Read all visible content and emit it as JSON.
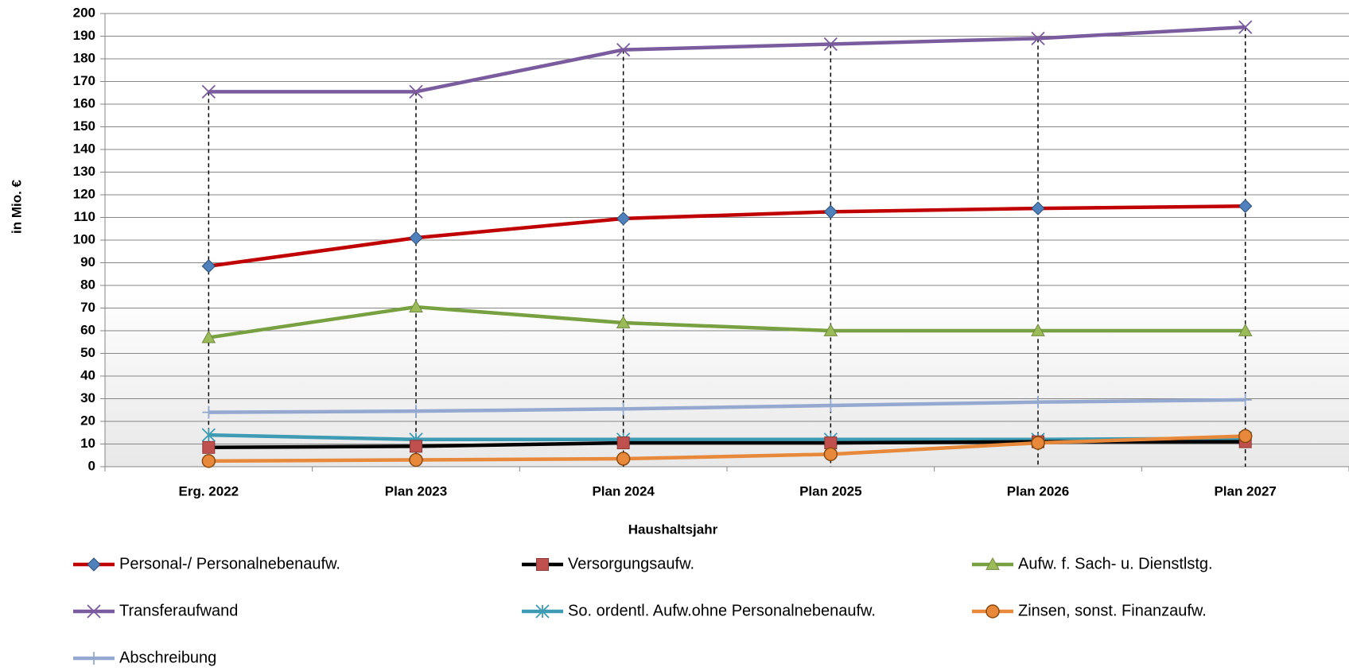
{
  "chart_data": {
    "type": "line",
    "x_label": "Haushaltsjahr",
    "y_label": "in Mio. €",
    "categories": [
      "Erg. 2022",
      "Plan 2023",
      "Plan 2024",
      "Plan 2025",
      "Plan 2026",
      "Plan 2027"
    ],
    "series": [
      {
        "name": "Personal-/ Personalnebenaufw.",
        "color": "#c00000",
        "marker": "diamond",
        "marker_color": "#4f81bd",
        "values": [
          88.5,
          101,
          109.5,
          112.5,
          114,
          115
        ]
      },
      {
        "name": "Versorgungsaufw.",
        "color": "#000000",
        "marker": "square",
        "marker_color": "#c0504d",
        "values": [
          8.5,
          9,
          10.5,
          10.5,
          11,
          11
        ]
      },
      {
        "name": "Aufw. f. Sach- u. Dienstlstg.",
        "color": "#77a040",
        "marker": "triangle",
        "marker_color": "#9bbb59",
        "values": [
          57,
          70.5,
          63.5,
          60,
          60,
          60
        ]
      },
      {
        "name": "Transferaufwand",
        "color": "#7a5c9e",
        "marker": "x",
        "marker_color": "#7a5c9e",
        "values": [
          165.5,
          165.5,
          184,
          186.5,
          189,
          194
        ]
      },
      {
        "name": "So. ordentl. Aufw.ohne Personalnebenaufw.",
        "color": "#3d9bb3",
        "marker": "star",
        "marker_color": "#3d9bb3",
        "values": [
          14,
          12,
          12,
          12,
          12,
          12.5
        ]
      },
      {
        "name": "Zinsen, sonst. Finanzaufw.",
        "color": "#e8883a",
        "marker": "circle",
        "marker_color": "#e8883a",
        "values": [
          2.5,
          3,
          3.5,
          5.5,
          10.5,
          13.5
        ]
      },
      {
        "name": "Abschreibung",
        "color": "#95a9d0",
        "marker": "plus",
        "marker_color": "#95a9d0",
        "values": [
          24,
          24.5,
          25.5,
          27,
          28.5,
          29.5
        ]
      }
    ],
    "ylim": [
      0,
      200
    ],
    "yticks": [
      0,
      10,
      20,
      30,
      40,
      50,
      60,
      70,
      80,
      90,
      100,
      110,
      120,
      130,
      140,
      150,
      160,
      170,
      180,
      190,
      200
    ],
    "grid": true,
    "drop_lines": true,
    "legend": "bottom"
  }
}
